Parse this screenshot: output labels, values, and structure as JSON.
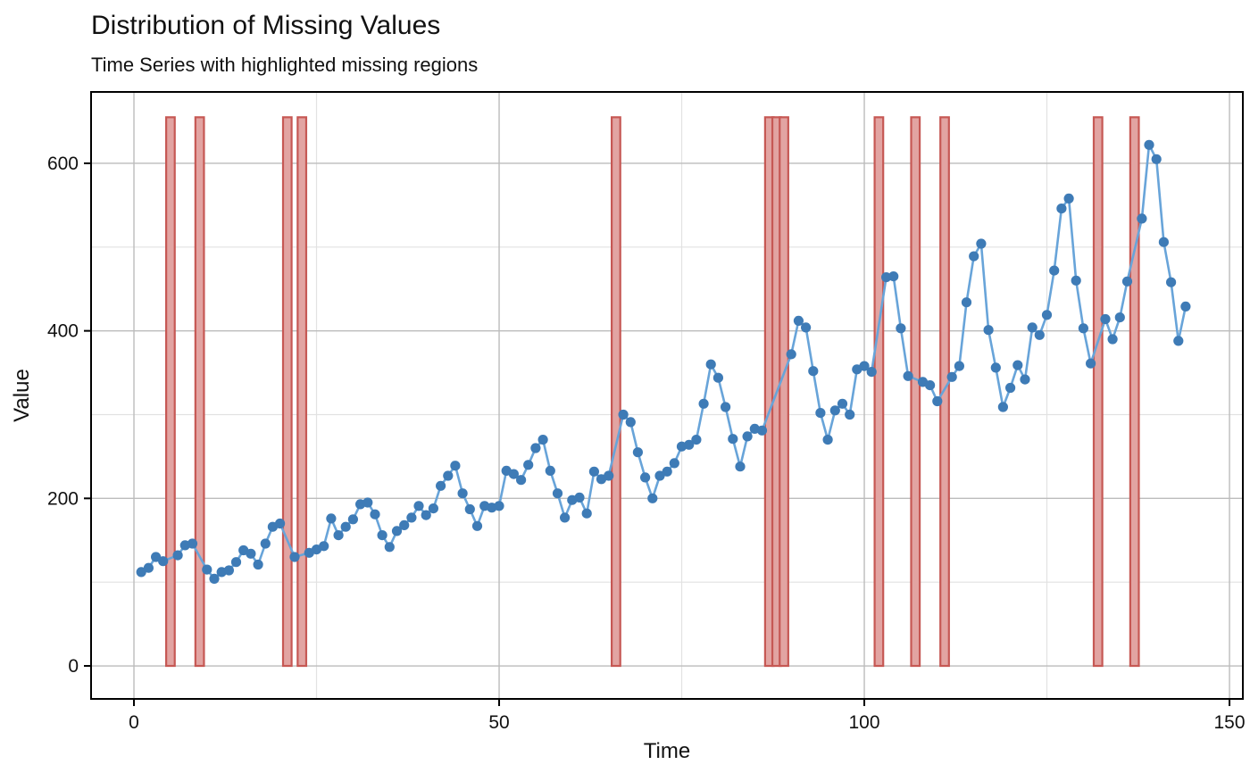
{
  "chart_data": {
    "type": "line",
    "title": "Distribution of Missing Values",
    "subtitle": "Time Series with highlighted missing regions",
    "xlabel": "Time",
    "ylabel": "Value",
    "x_ticks": [
      0,
      50,
      100,
      150
    ],
    "y_ticks": [
      0,
      200,
      400,
      600
    ],
    "x_minor_gridlines": [
      25,
      75,
      125
    ],
    "y_minor_gridlines": [
      100,
      300,
      500
    ],
    "xlim": [
      -5.87,
      151.83
    ],
    "ylim": [
      -39.4,
      685.2
    ],
    "grid": true,
    "legend": "none",
    "x_start": 1,
    "values": [
      112,
      117,
      130,
      125,
      null,
      132,
      144,
      146,
      null,
      115,
      104,
      112,
      114,
      124,
      138,
      134,
      121,
      146,
      166,
      170,
      null,
      130,
      null,
      135,
      139,
      143,
      176,
      156,
      166,
      175,
      193,
      195,
      181,
      156,
      142,
      161,
      168,
      177,
      191,
      180,
      188,
      215,
      227,
      239,
      206,
      187,
      167,
      191,
      189,
      191,
      233,
      229,
      222,
      240,
      260,
      270,
      233,
      206,
      177,
      198,
      201,
      182,
      232,
      223,
      227,
      null,
      300,
      291,
      255,
      225,
      200,
      227,
      232,
      242,
      262,
      264,
      270,
      313,
      360,
      344,
      309,
      271,
      238,
      274,
      283,
      281,
      null,
      null,
      null,
      372,
      412,
      404,
      352,
      302,
      270,
      305,
      313,
      300,
      354,
      358,
      351,
      null,
      464,
      465,
      403,
      346,
      null,
      339,
      335,
      316,
      null,
      345,
      358,
      434,
      489,
      504,
      401,
      356,
      309,
      332,
      359,
      342,
      404,
      395,
      419,
      472,
      546,
      558,
      460,
      403,
      361,
      null,
      414,
      390,
      416,
      459,
      null,
      534,
      622,
      605,
      506,
      458,
      388,
      429
    ],
    "missing_times": [
      5,
      9,
      21,
      23,
      66,
      87,
      88,
      89,
      102,
      107,
      111,
      132,
      137
    ],
    "missing_bar_ymin": 0,
    "missing_bar_ymax": 655,
    "colors": {
      "line": "#68a4d9",
      "marker": "#3e7bb6",
      "missing_fill": "#e2a4a2",
      "missing_stroke": "#c65854",
      "grid_major": "#bcbcbc",
      "grid_minor": "#e2e2e2",
      "panel_border": "#000000",
      "background": "#ffffff"
    }
  }
}
